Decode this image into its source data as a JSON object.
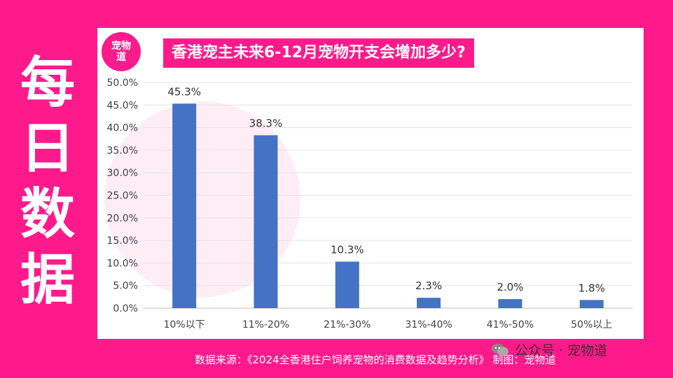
{
  "side_title": [
    "每",
    "日",
    "数",
    "据"
  ],
  "logo_text": "宠物道",
  "colors": {
    "background": "#ff1a8c",
    "bar": "#4472c4",
    "panel": "#ffffff"
  },
  "chart_data": {
    "type": "bar",
    "title": "香港宠主未来6-12月宠物开支会增加多少?",
    "categories": [
      "10%以下",
      "11%-20%",
      "21%-30%",
      "31%-40%",
      "41%-50%",
      "50%以上"
    ],
    "values": [
      45.3,
      38.3,
      10.3,
      2.3,
      2.0,
      1.8
    ],
    "value_labels": [
      "45.3%",
      "38.3%",
      "10.3%",
      "2.3%",
      "2.0%",
      "1.8%"
    ],
    "y_ticks": [
      "0.0%",
      "5.0%",
      "10.0%",
      "15.0%",
      "20.0%",
      "25.0%",
      "30.0%",
      "35.0%",
      "40.0%",
      "45.0%",
      "50.0%"
    ],
    "ylim": [
      0,
      50
    ],
    "y_step": 5,
    "grid": true,
    "xlabel": "",
    "ylabel": ""
  },
  "footer": {
    "source": "数据来源：《2024全香港住户饲养宠物的消费数据及趋势分析》 制图：宠物道"
  },
  "wechat": {
    "icon": "wechat-icon",
    "label": "公众号 · 宠物道"
  }
}
